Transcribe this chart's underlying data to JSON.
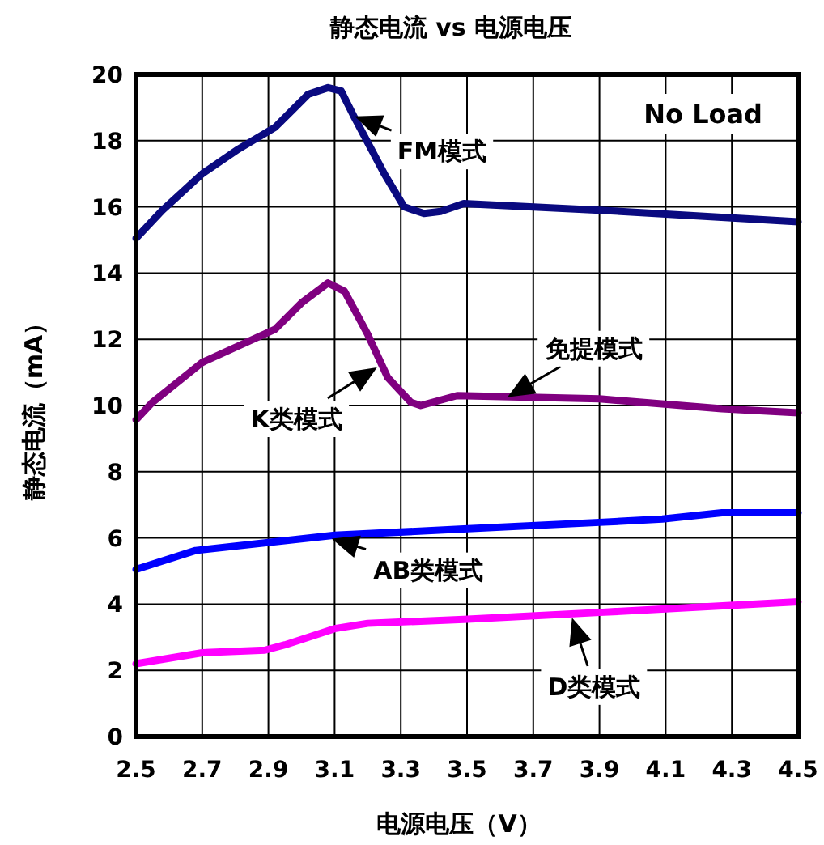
{
  "chart_data": {
    "type": "line",
    "title": "静态电流 vs 电源电压",
    "xlabel": "电源电压（V）",
    "ylabel": "静态电流（mA）",
    "xlim": [
      2.5,
      4.5
    ],
    "xticks": [
      2.5,
      2.7,
      2.9,
      3.1,
      3.3,
      3.5,
      3.7,
      3.9,
      4.1,
      4.3,
      4.5
    ],
    "ylim": [
      0,
      20
    ],
    "yticks": [
      0,
      2,
      4,
      6,
      8,
      10,
      12,
      14,
      16,
      18,
      20
    ],
    "grid": true,
    "marker": "none",
    "line_style": "solid",
    "series": [
      {
        "color": "#0a0a80",
        "x": [
          2.5,
          2.58,
          2.7,
          2.81,
          2.92,
          2.97,
          3.02,
          3.08,
          3.12,
          3.16,
          3.25,
          3.31,
          3.37,
          3.42,
          3.49,
          3.9,
          4.5
        ],
        "values": [
          15.05,
          15.9,
          17.0,
          17.75,
          18.4,
          18.9,
          19.4,
          19.6,
          19.5,
          18.7,
          17.0,
          16.0,
          15.8,
          15.86,
          16.1,
          15.9,
          15.55
        ]
      },
      {
        "color": "#800080",
        "x": [
          2.5,
          2.55,
          2.7,
          2.92,
          3.0,
          3.08,
          3.13,
          3.2,
          3.26,
          3.33,
          3.36,
          3.47,
          3.9,
          4.27,
          4.5
        ],
        "values": [
          9.57,
          10.1,
          11.3,
          12.3,
          13.1,
          13.7,
          13.45,
          12.15,
          10.85,
          10.1,
          10.0,
          10.3,
          10.2,
          9.9,
          9.78
        ]
      },
      {
        "color": "#0000ff",
        "x": [
          2.5,
          2.68,
          3.1,
          3.49,
          3.9,
          4.09,
          4.27,
          4.5
        ],
        "values": [
          5.05,
          5.62,
          6.08,
          6.27,
          6.47,
          6.57,
          6.76,
          6.76
        ]
      },
      {
        "color": "#ff00ff",
        "x": [
          2.5,
          2.7,
          2.89,
          2.95,
          3.1,
          3.2,
          3.49,
          3.9,
          4.5
        ],
        "values": [
          2.2,
          2.53,
          2.61,
          2.77,
          3.26,
          3.42,
          3.54,
          3.75,
          4.07
        ]
      }
    ],
    "annotations": [
      {
        "text": "FM模式",
        "x": 3.17,
        "y": 18.7
      },
      {
        "text": "K类模式",
        "x": 3.22,
        "y": 11.1
      },
      {
        "text": "免提模式",
        "x": 3.63,
        "y": 10.3
      },
      {
        "text": "AB类模式",
        "x": 3.1,
        "y": 5.95
      },
      {
        "text": "D类模式",
        "x": 3.82,
        "y": 3.5
      },
      "No Load"
    ]
  }
}
